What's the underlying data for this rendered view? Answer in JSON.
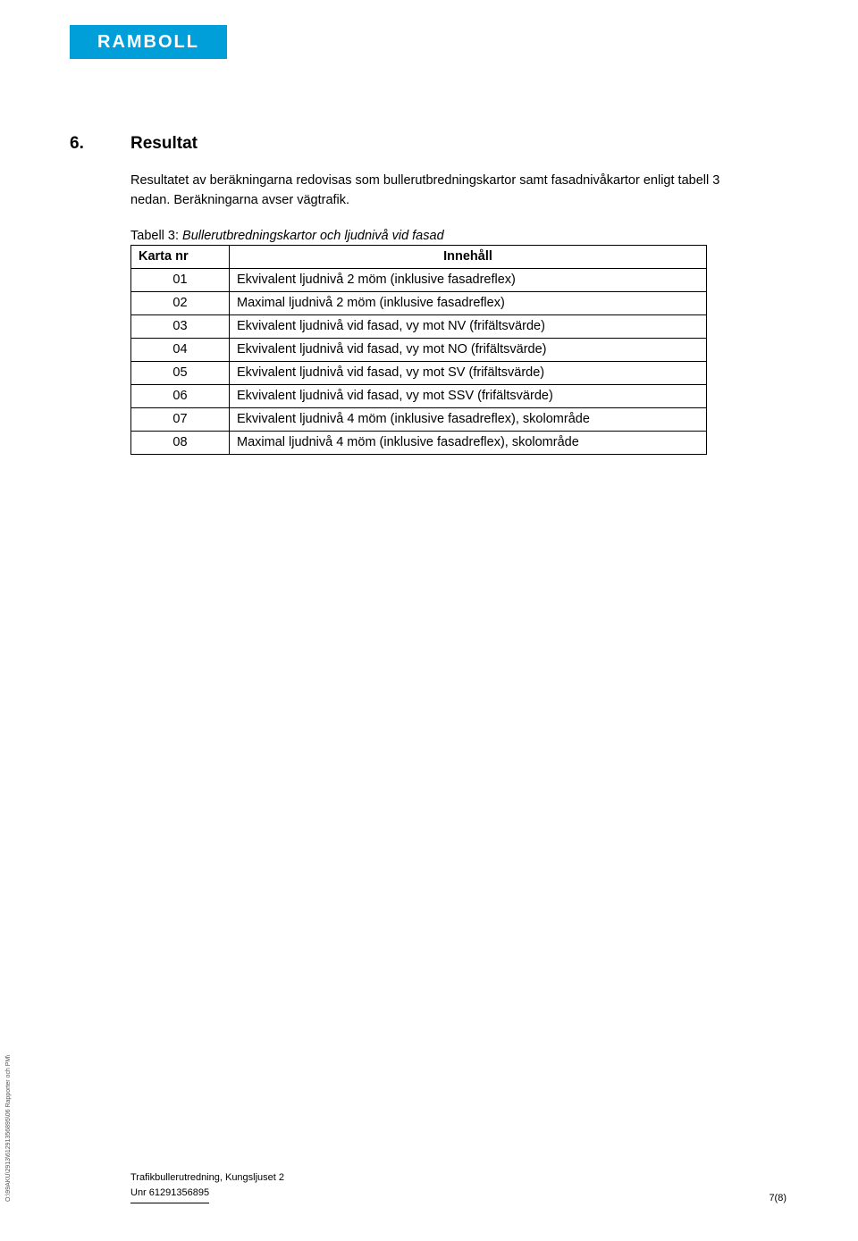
{
  "logo_text": "RAMBOLL",
  "section": {
    "number": "6.",
    "title": "Resultat"
  },
  "paragraph": "Resultatet av beräkningarna redovisas som bullerutbredningskartor samt fasadnivåkartor enligt tabell 3 nedan. Beräkningarna avser vägtrafik.",
  "table_caption_prefix": "Tabell 3:",
  "table_caption_rest": " Bullerutbredningskartor och ljudnivå vid fasad",
  "table": {
    "headers": [
      "Karta nr",
      "Innehåll"
    ],
    "rows": [
      [
        "01",
        "Ekvivalent ljudnivå 2 möm (inklusive fasadreflex)"
      ],
      [
        "02",
        "Maximal ljudnivå 2 möm (inklusive fasadreflex)"
      ],
      [
        "03",
        "Ekvivalent ljudnivå vid fasad, vy mot NV (frifältsvärde)"
      ],
      [
        "04",
        "Ekvivalent ljudnivå vid fasad, vy mot NO (frifältsvärde)"
      ],
      [
        "05",
        "Ekvivalent ljudnivå vid fasad, vy mot SV (frifältsvärde)"
      ],
      [
        "06",
        "Ekvivalent ljudnivå vid fasad, vy mot SSV (frifältsvärde)"
      ],
      [
        "07",
        "Ekvivalent ljudnivå 4 möm (inklusive fasadreflex), skolområde"
      ],
      [
        "08",
        "Maximal ljudnivå 4 möm (inklusive fasadreflex), skolområde"
      ]
    ]
  },
  "side_path": "O:\\99AKU\\2913\\61291356895\\06 Rapporter och PM\\",
  "footer": {
    "line1": "Trafikbullerutredning, Kungsljuset 2",
    "line2": "Unr 61291356895"
  },
  "page_number": "7(8)"
}
